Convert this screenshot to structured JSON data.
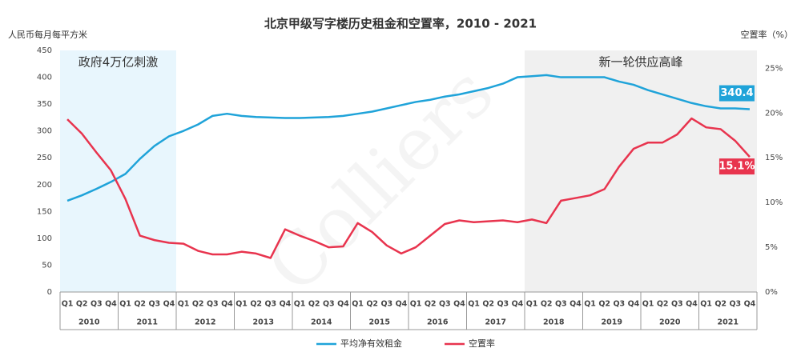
{
  "chart_data": {
    "type": "line",
    "title": "北京甲级写字楼历史租金和空置率，2010 - 2021",
    "ylabel": "人民币每月每平方米",
    "y2label": "空置率（%）",
    "watermark": "Colliers",
    "categories": [
      "Q1",
      "Q2",
      "Q3",
      "Q4",
      "Q1",
      "Q2",
      "Q3",
      "Q4",
      "Q1",
      "Q2",
      "Q3",
      "Q4",
      "Q1",
      "Q2",
      "Q3",
      "Q4",
      "Q1",
      "Q2",
      "Q3",
      "Q4",
      "Q1",
      "Q2",
      "Q3",
      "Q4",
      "Q1",
      "Q2",
      "Q3",
      "Q4",
      "Q1",
      "Q2",
      "Q3",
      "Q4",
      "Q1",
      "Q2",
      "Q3",
      "Q4",
      "Q1",
      "Q2",
      "Q3",
      "Q4",
      "Q1",
      "Q2",
      "Q3",
      "Q4",
      "Q1",
      "Q2",
      "Q3",
      "Q4"
    ],
    "groups": [
      "2010",
      "2011",
      "2012",
      "2013",
      "2014",
      "2015",
      "2016",
      "2017",
      "2018",
      "2019",
      "2020",
      "2021"
    ],
    "ylim": [
      0,
      450
    ],
    "yticks": [
      0,
      50,
      100,
      150,
      200,
      250,
      300,
      350,
      400,
      450
    ],
    "y2lim": [
      0,
      27
    ],
    "y2ticks": [
      {
        "value": 0,
        "label": "0%"
      },
      {
        "value": 5,
        "label": "5%"
      },
      {
        "value": 10,
        "label": "10%"
      },
      {
        "value": 15,
        "label": "15%"
      },
      {
        "value": 20,
        "label": "20%"
      },
      {
        "value": 25,
        "label": "25%"
      }
    ],
    "legend": "bottom",
    "regions": [
      {
        "label": "政府4万亿刺激",
        "from": "2010",
        "to": "2011",
        "color": "#e8f6fd"
      },
      {
        "label": "新一轮供应高峰",
        "from": "2018",
        "to": "2021",
        "color": "#f0f0f0"
      }
    ],
    "series": [
      {
        "name": "平均净有效租金",
        "color": "#1fa3d9",
        "values": [
          170,
          180,
          192,
          205,
          220,
          248,
          272,
          290,
          300,
          312,
          328,
          332,
          328,
          326,
          325,
          324,
          324,
          325,
          326,
          328,
          332,
          336,
          342,
          348,
          354,
          358,
          364,
          368,
          374,
          380,
          388,
          400,
          402,
          404,
          400,
          400,
          400,
          400,
          392,
          386,
          376,
          368,
          360,
          352,
          346,
          342,
          342,
          340.4
        ],
        "value_labels": [
          null,
          null,
          null,
          null,
          null,
          null,
          null,
          null,
          null,
          null,
          null,
          null,
          null,
          null,
          null,
          null,
          null,
          null,
          null,
          null,
          null,
          null,
          null,
          null,
          null,
          null,
          null,
          null,
          null,
          null,
          null,
          null,
          null,
          null,
          null,
          null,
          null,
          null,
          null,
          null,
          null,
          null,
          null,
          null,
          null,
          null,
          null,
          "340.4"
        ]
      },
      {
        "name": "空置率",
        "color": "#e8344e",
        "axis": "y2",
        "values": [
          19.3,
          17.7,
          15.6,
          13.6,
          10.4,
          6.3,
          5.8,
          5.5,
          5.4,
          4.6,
          4.2,
          4.2,
          4.5,
          4.3,
          3.8,
          7.0,
          6.3,
          5.7,
          5.0,
          5.1,
          7.7,
          6.7,
          5.2,
          4.3,
          5.0,
          6.3,
          7.6,
          8.0,
          7.8,
          7.9,
          8.0,
          7.8,
          8.1,
          7.7,
          10.2,
          10.5,
          10.8,
          11.5,
          14.0,
          16.0,
          16.7,
          16.7,
          17.6,
          19.4,
          18.4,
          18.2,
          16.9,
          15.1
        ],
        "value_labels": [
          null,
          null,
          null,
          null,
          null,
          null,
          null,
          null,
          null,
          null,
          null,
          null,
          null,
          null,
          null,
          null,
          null,
          null,
          null,
          null,
          null,
          null,
          null,
          null,
          null,
          null,
          null,
          null,
          null,
          null,
          null,
          null,
          null,
          null,
          null,
          null,
          null,
          null,
          null,
          null,
          null,
          null,
          null,
          null,
          null,
          null,
          null,
          "15.1%"
        ]
      }
    ]
  }
}
